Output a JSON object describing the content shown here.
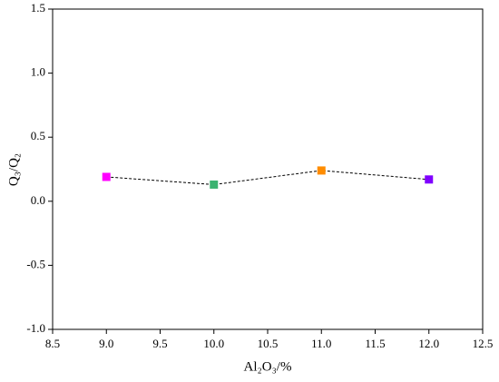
{
  "chart_data": {
    "type": "scatter",
    "x_label": "Al₂O₃/%",
    "y_label": "Q₃/Q₂",
    "x": [
      9,
      10,
      11,
      12
    ],
    "values": [
      0.19,
      0.13,
      0.24,
      0.17
    ],
    "colors": [
      "#ff00ff",
      "#3cb371",
      "#ff8c00",
      "#8000ff"
    ],
    "line_color": "#000000",
    "line_style": "dashed",
    "xlim": [
      8.5,
      12.5
    ],
    "xticks": [
      {
        "value": 8.5,
        "label": "8.5"
      },
      {
        "value": 9,
        "label": "9.0"
      },
      {
        "value": 9.5,
        "label": "9.5"
      },
      {
        "value": 10,
        "label": "10.0"
      },
      {
        "value": 10.5,
        "label": "10.5"
      },
      {
        "value": 11,
        "label": "11.0"
      },
      {
        "value": 11.5,
        "label": "11.5"
      },
      {
        "value": 12,
        "label": "12.0"
      },
      {
        "value": 12.5,
        "label": "12.5"
      }
    ],
    "ylim": [
      -1,
      1.5
    ],
    "yticks": [
      {
        "value": -1,
        "label": "-1.0"
      },
      {
        "value": -0.5,
        "label": "-0.5"
      },
      {
        "value": 0,
        "label": "0.0"
      },
      {
        "value": 0.5,
        "label": "0.5"
      },
      {
        "value": 1,
        "label": "1.0"
      },
      {
        "value": 1.5,
        "label": "1.5"
      }
    ],
    "grid": false
  }
}
